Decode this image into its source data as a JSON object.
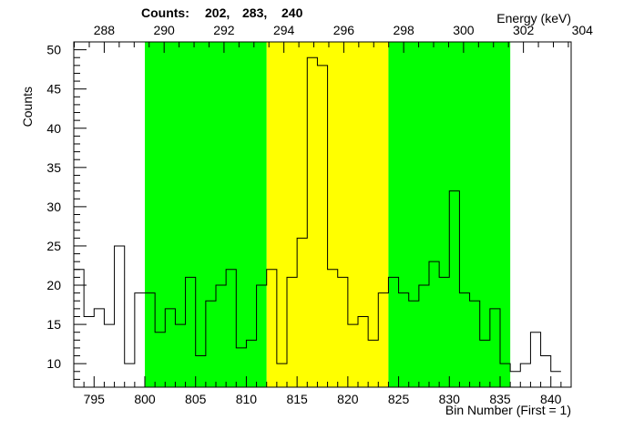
{
  "header": {
    "counts_label": "Counts:",
    "counts_values": [
      "202,",
      "283,",
      "240"
    ],
    "top_axis_title": "Energy (keV)"
  },
  "chart_data": {
    "type": "histogram-step",
    "xlabel": "Bin Number (First = 1)",
    "ylabel": "Counts",
    "xlim": [
      793,
      842
    ],
    "ylim": [
      7,
      51
    ],
    "x_ticks": [
      795,
      800,
      805,
      810,
      815,
      820,
      825,
      830,
      835,
      840
    ],
    "y_ticks": [
      10,
      15,
      20,
      25,
      30,
      35,
      40,
      45,
      50
    ],
    "top_axis": {
      "title": "Energy (keV)",
      "ticks": [
        {
          "bin": 796.0,
          "label": "288"
        },
        {
          "bin": 801.9,
          "label": "290"
        },
        {
          "bin": 807.8,
          "label": "292"
        },
        {
          "bin": 813.7,
          "label": "294"
        },
        {
          "bin": 819.6,
          "label": "296"
        },
        {
          "bin": 825.5,
          "label": "298"
        },
        {
          "bin": 831.4,
          "label": "300"
        },
        {
          "bin": 837.3,
          "label": "302"
        },
        {
          "bin": 843.1,
          "label": "304"
        }
      ]
    },
    "regions": [
      {
        "name": "left-background",
        "from": 800,
        "to": 812,
        "color": "#00ff00"
      },
      {
        "name": "peak",
        "from": 812,
        "to": 824,
        "color": "#ffff00"
      },
      {
        "name": "right-background",
        "from": 824,
        "to": 836,
        "color": "#00ff00"
      }
    ],
    "bins_start": 793,
    "bin_width": 1,
    "values": [
      22,
      16,
      17,
      15,
      25,
      10,
      19,
      19,
      14,
      17,
      15,
      21,
      11,
      18,
      20,
      22,
      12,
      13,
      20,
      22,
      10,
      21,
      26,
      49,
      48,
      22,
      21,
      15,
      16,
      13,
      19,
      21,
      19,
      18,
      20,
      23,
      21,
      32,
      19,
      18,
      13,
      17,
      10,
      9,
      10,
      14,
      11,
      9
    ]
  }
}
